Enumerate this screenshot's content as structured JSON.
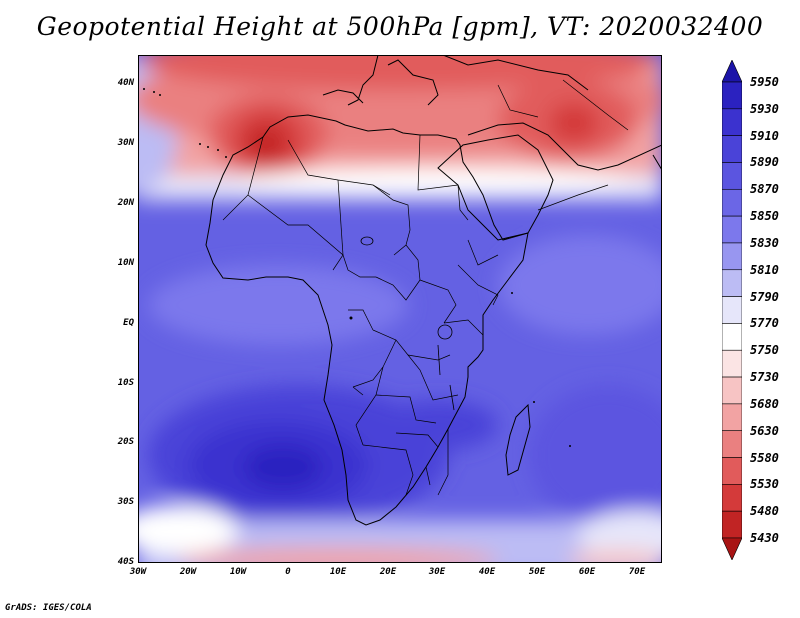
{
  "title": "Geopotential Height at 500hPa [gpm], VT: 2020032400",
  "footer": "GrADS: IGES/COLA",
  "map": {
    "lat_labels": [
      "40N",
      "30N",
      "20N",
      "10N",
      "EQ",
      "10S",
      "20S",
      "30S",
      "40S"
    ],
    "lat_values": [
      40,
      30,
      20,
      10,
      0,
      -10,
      -20,
      -30,
      -40
    ],
    "lon_labels": [
      "30W",
      "20W",
      "10W",
      "0",
      "10E",
      "20E",
      "30E",
      "40E",
      "50E",
      "60E",
      "70E"
    ],
    "lon_values": [
      -30,
      -20,
      -10,
      0,
      10,
      20,
      30,
      40,
      50,
      60,
      70
    ],
    "lon_range": [
      -30,
      75
    ],
    "lat_range": [
      -40,
      45
    ],
    "field_centers": [
      {
        "feature": "subtropical high core",
        "lon": -4,
        "lat": -25,
        "value": 5930
      },
      {
        "feature": "low over NW Africa",
        "lon": -5,
        "lat": 30,
        "value": 5480
      },
      {
        "feature": "low over Arabia/Iran",
        "lon": 58,
        "lat": 33,
        "value": 5530
      }
    ]
  },
  "colorbar": {
    "levels": [
      "5950",
      "5930",
      "5910",
      "5890",
      "5870",
      "5850",
      "5830",
      "5810",
      "5790",
      "5770",
      "5750",
      "5730",
      "5680",
      "5630",
      "5580",
      "5530",
      "5480",
      "5430"
    ],
    "colors": [
      "#1c14a8",
      "#2b22c0",
      "#3b32cf",
      "#4a43d8",
      "#5b55e0",
      "#6b66e6",
      "#7c78ec",
      "#9896f0",
      "#bcbcf4",
      "#e6e6fa",
      "#ffffff",
      "#fbe4e4",
      "#f7c4c4",
      "#f2a3a3",
      "#ea8080",
      "#e15b5b",
      "#d43a3a",
      "#c12424",
      "#a81414"
    ]
  },
  "palette": {
    "low_extreme": "#c12424",
    "high_extreme": "#1c14a8",
    "neutral": "#ffffff"
  }
}
